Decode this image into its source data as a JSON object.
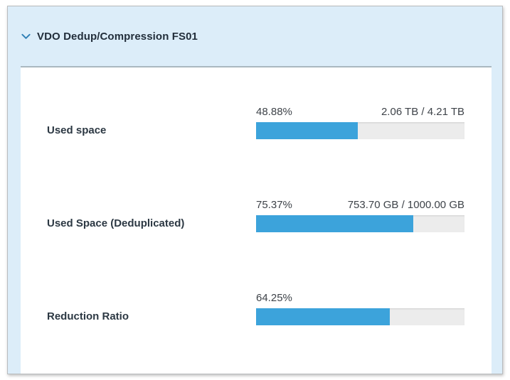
{
  "panel": {
    "title": "VDO Dedup/Compression FS01",
    "state": "expanded",
    "chevron_icon": "chevron-down"
  },
  "colors": {
    "panel_background": "#dcedf9",
    "bar_fill": "#3ca3db",
    "bar_track": "#ececec",
    "chevron": "#2e7fb5",
    "title_text": "#222e3b"
  },
  "metrics": [
    {
      "label": "Used space",
      "percent_label": "48.88%",
      "percent_value": 48.88,
      "detail": "2.06 TB / 4.21 TB"
    },
    {
      "label": "Used Space (Deduplicated)",
      "percent_label": "75.37%",
      "percent_value": 75.37,
      "detail": "753.70 GB / 1000.00 GB"
    },
    {
      "label": "Reduction Ratio",
      "percent_label": "64.25%",
      "percent_value": 64.25,
      "detail": ""
    }
  ]
}
